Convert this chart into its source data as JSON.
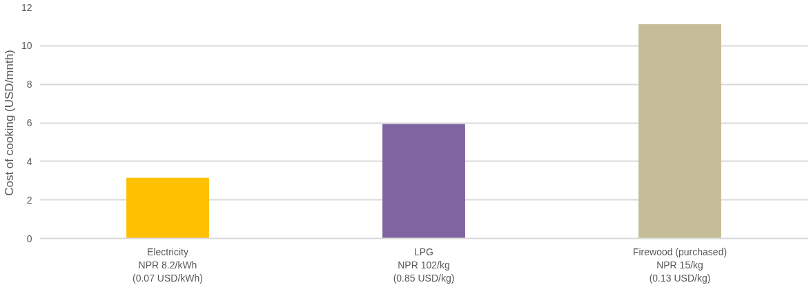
{
  "chart_data": {
    "type": "bar",
    "ylabel": "Cost of cooking (USD/mnth)",
    "categories": [
      "Electricity\nNPR 8.2/kWh\n(0.07 USD/kWh)",
      "LPG\nNPR 102/kg\n(0.85 USD/kg)",
      "Firewood (purchased)\nNPR 15/kg\n(0.13 USD/kg)"
    ],
    "values": [
      3.13,
      5.92,
      11.1
    ],
    "colors": [
      "#ffc000",
      "#8064a2",
      "#c4bd97"
    ],
    "ylim": [
      0,
      12
    ],
    "yticks": [
      0,
      2,
      4,
      6,
      8,
      10,
      12
    ],
    "grid": "y"
  }
}
